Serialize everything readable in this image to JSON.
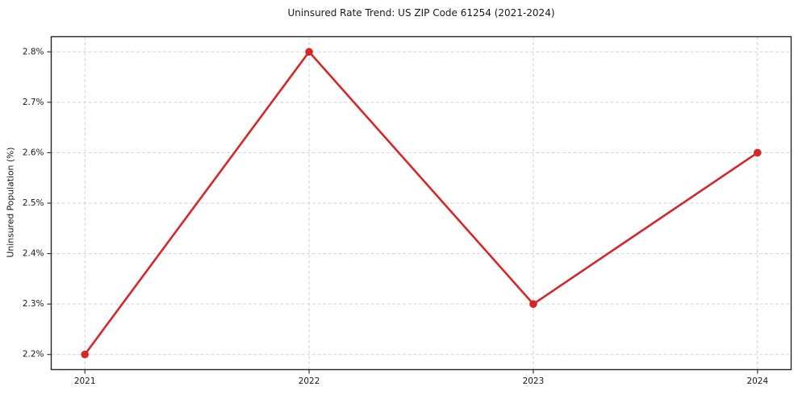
{
  "chart_data": {
    "type": "line",
    "title": "Uninsured Rate Trend: US ZIP Code 61254 (2021-2024)",
    "xlabel": "",
    "ylabel": "Uninsured Population (%)",
    "x": [
      2021,
      2022,
      2023,
      2024
    ],
    "xtick_labels": [
      "2021",
      "2022",
      "2023",
      "2024"
    ],
    "values": [
      2.2,
      2.8,
      2.3,
      2.6
    ],
    "ytick_values": [
      2.2,
      2.3,
      2.4,
      2.5,
      2.6,
      2.7,
      2.8
    ],
    "ytick_labels": [
      "2.2%",
      "2.3%",
      "2.4%",
      "2.5%",
      "2.6%",
      "2.7%",
      "2.8%"
    ],
    "xlim": [
      2020.85,
      2024.15
    ],
    "ylim": [
      2.17,
      2.83
    ],
    "grid": true,
    "legend": "none",
    "line_color": "#d62728",
    "grid_color": "#cccccc",
    "marker": "circle"
  }
}
